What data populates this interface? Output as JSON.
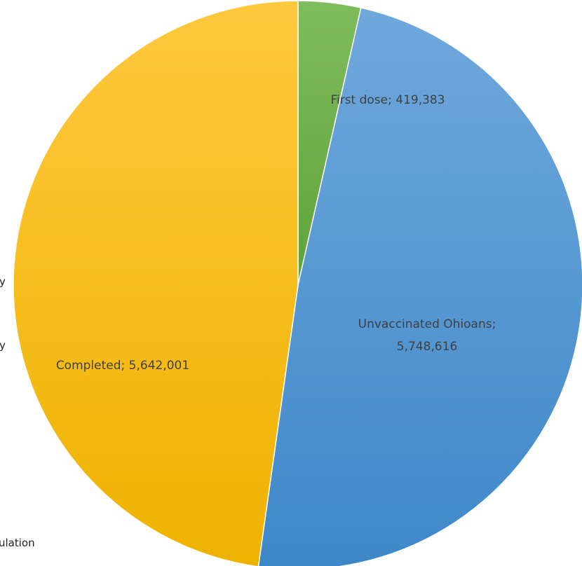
{
  "chart_data": {
    "type": "pie",
    "title": "",
    "slices": [
      {
        "label": "First dose",
        "value": 419383,
        "display": "First dose; 419,383",
        "color": "#70ad47"
      },
      {
        "label": "Unvaccinated Ohioans",
        "value": 5748616,
        "display": "Unvaccinated Ohioans;\n5,748,616",
        "color": "#5b9bd5"
      },
      {
        "label": "Completed",
        "value": 5642001,
        "display": "Completed; 5,642,001",
        "color": "#ffc000"
      }
    ]
  },
  "edge_fragments": [
    "y",
    "y",
    "ulation"
  ]
}
